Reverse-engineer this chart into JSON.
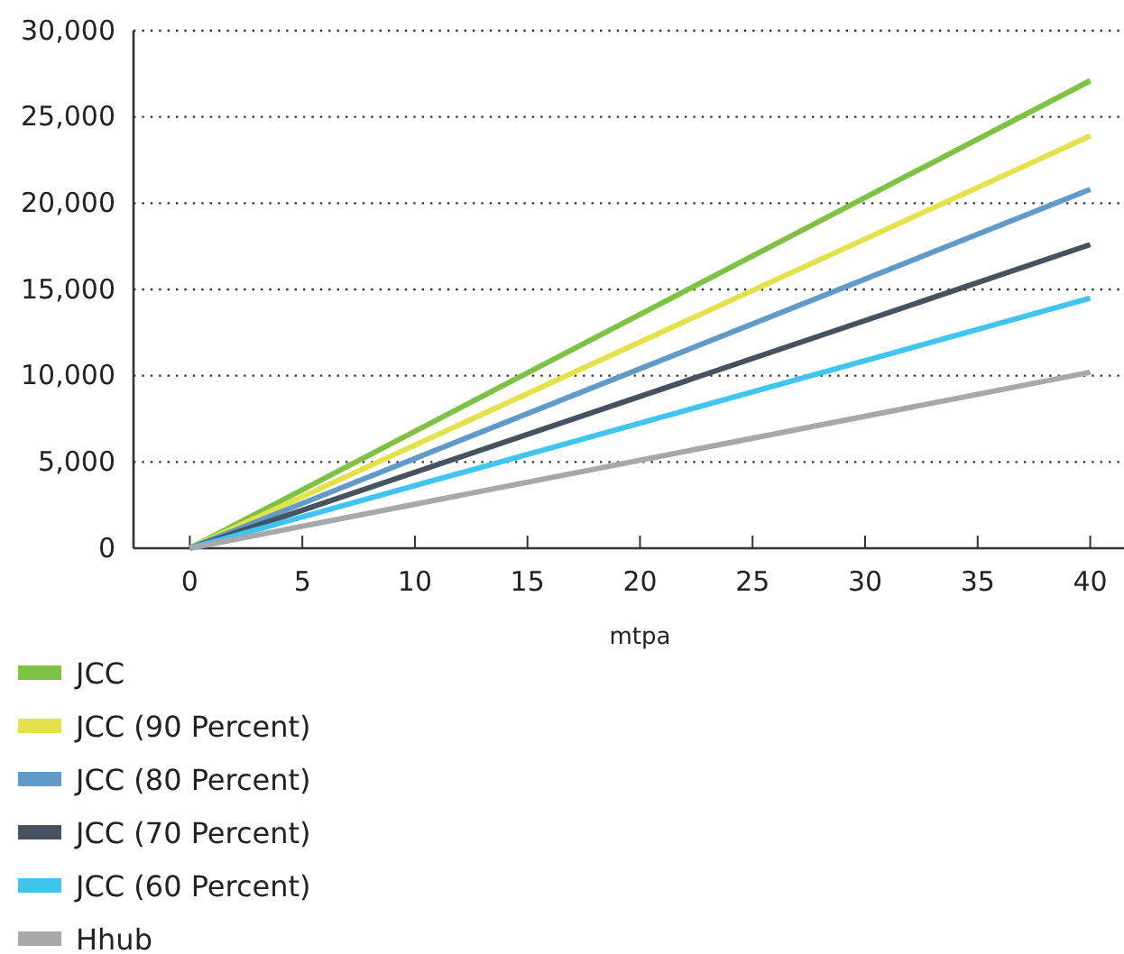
{
  "chart_data": {
    "type": "line",
    "xlabel": "mtpa",
    "x": [
      0,
      40
    ],
    "xlim": [
      -2.5,
      41.5
    ],
    "xticks": [
      0,
      5,
      10,
      15,
      20,
      25,
      30,
      35,
      40
    ],
    "ylim": [
      0,
      30000
    ],
    "yticks": [
      {
        "value": 0,
        "label": "0"
      },
      {
        "value": 5000,
        "label": "5,000"
      },
      {
        "value": 10000,
        "label": "10,000"
      },
      {
        "value": 15000,
        "label": "15,000"
      },
      {
        "value": 20000,
        "label": "20,000"
      },
      {
        "value": 25000,
        "label": "25,000"
      },
      {
        "value": 30000,
        "label": "30,000"
      }
    ],
    "grid": "y",
    "legend": "bottom",
    "line_style": "solid",
    "marker": "none",
    "series": [
      {
        "name": "JCC",
        "color": "#7dc242",
        "values": [
          0,
          27100
        ]
      },
      {
        "name": "JCC (90 Percent)",
        "color": "#e3e24a",
        "values": [
          0,
          23900
        ]
      },
      {
        "name": "JCC (80 Percent)",
        "color": "#5f9ac9",
        "values": [
          0,
          20800
        ]
      },
      {
        "name": "JCC (70 Percent)",
        "color": "#45525f",
        "values": [
          0,
          17600
        ]
      },
      {
        "name": "JCC (60 Percent)",
        "color": "#3fc5f0",
        "values": [
          0,
          14500
        ]
      },
      {
        "name": "Hhub",
        "color": "#a7a8aa",
        "values": [
          0,
          10200
        ]
      }
    ]
  }
}
